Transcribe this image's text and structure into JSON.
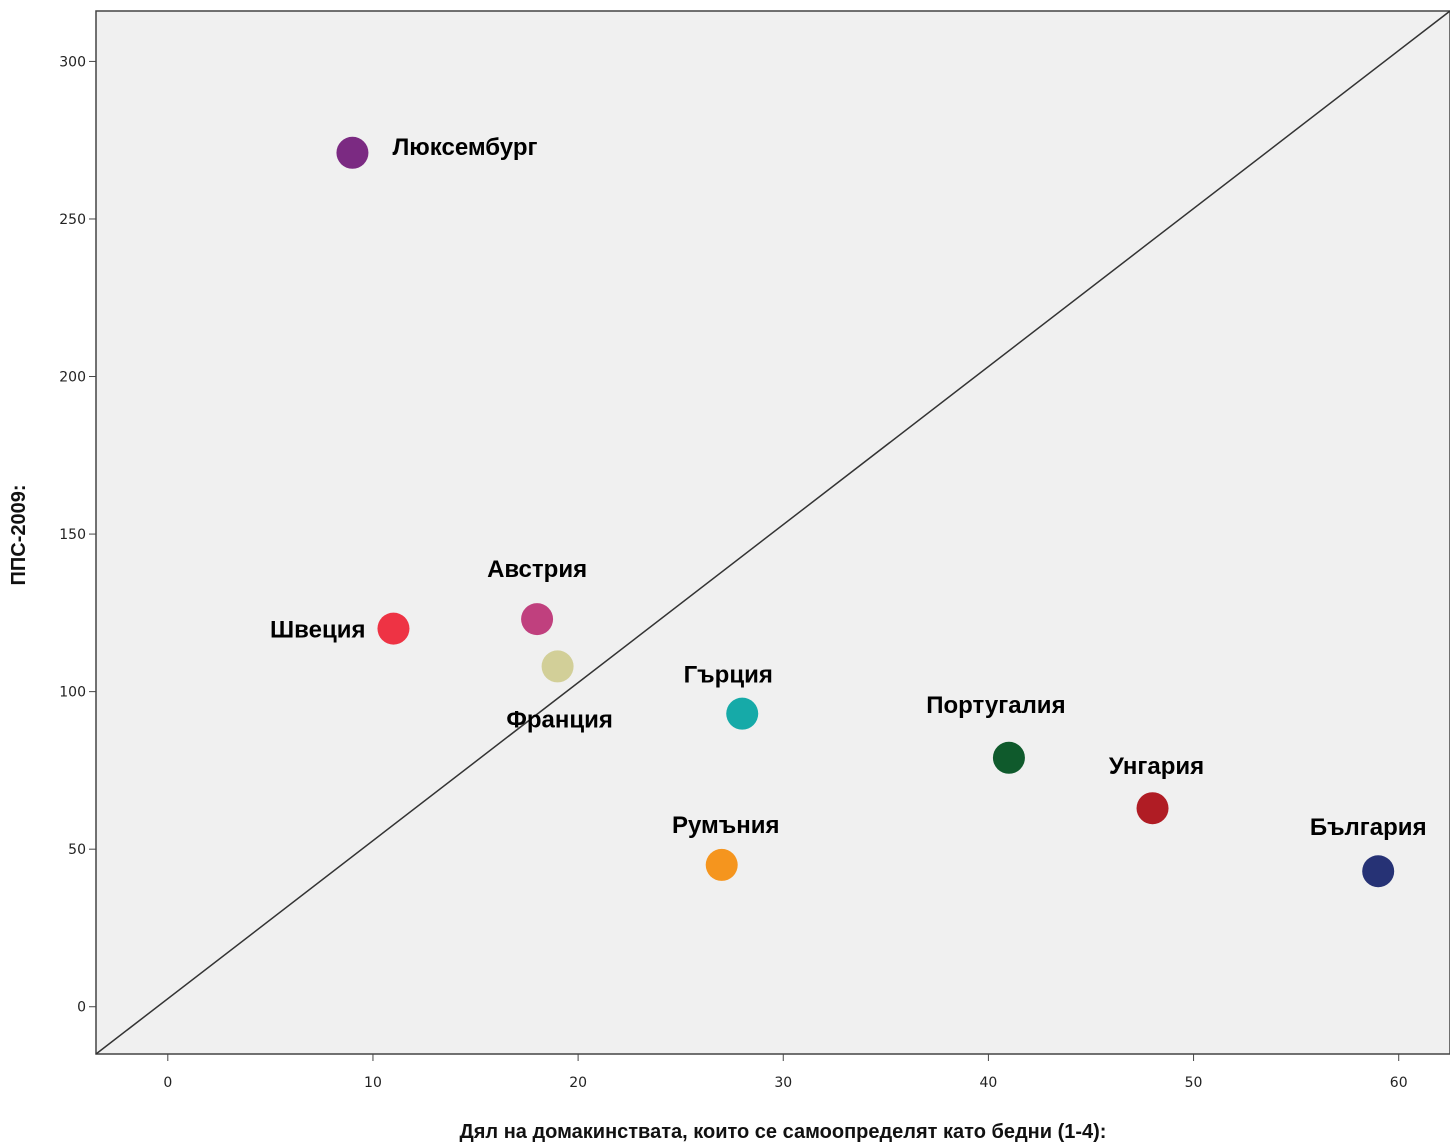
{
  "chart_data": {
    "type": "scatter",
    "title": "",
    "xlabel": "Дял на домакинствата, които се самоопределят като бедни (1-4):",
    "ylabel": "ППС-2009:",
    "xlim": [
      -3.5,
      62.5
    ],
    "ylim": [
      -15,
      316
    ],
    "xticks": [
      0,
      10,
      20,
      30,
      40,
      50,
      60
    ],
    "yticks": [
      0,
      50,
      100,
      150,
      200,
      250,
      300
    ],
    "grid": false,
    "background": "#f0f0f0",
    "reference_line": {
      "type": "diagonal",
      "color": "#333333"
    },
    "points": [
      {
        "label": "Люксембург",
        "x": 9,
        "y": 271,
        "color": "#7b2a82"
      },
      {
        "label": "Швеция",
        "x": 11,
        "y": 120,
        "color": "#ee3344"
      },
      {
        "label": "Австрия",
        "x": 18,
        "y": 123,
        "color": "#c0407e"
      },
      {
        "label": "Франция",
        "x": 19,
        "y": 108,
        "color": "#d2cf98"
      },
      {
        "label": "Гърция",
        "x": 28,
        "y": 93,
        "color": "#16aaa8"
      },
      {
        "label": "Румъния",
        "x": 27,
        "y": 45,
        "color": "#f5951e"
      },
      {
        "label": "Португалия",
        "x": 41,
        "y": 79,
        "color": "#0f5a2c"
      },
      {
        "label": "Унгария",
        "x": 48,
        "y": 63,
        "color": "#b01c24"
      },
      {
        "label": "България",
        "x": 59,
        "y": 43,
        "color": "#263275"
      }
    ]
  }
}
